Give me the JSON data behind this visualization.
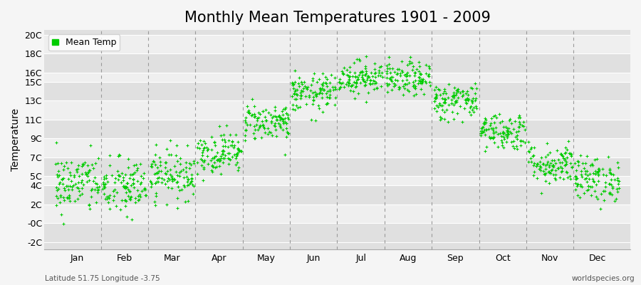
{
  "title": "Monthly Mean Temperatures 1901 - 2009",
  "ylabel": "Temperature",
  "xlabel_labels": [
    "Jan",
    "Feb",
    "Mar",
    "Apr",
    "May",
    "Jun",
    "Jul",
    "Aug",
    "Sep",
    "Oct",
    "Nov",
    "Dec"
  ],
  "ytick_labels": [
    "-2C",
    "-0C",
    "2C",
    "4C",
    "5C",
    "7C",
    "9C",
    "11C",
    "13C",
    "15C",
    "16C",
    "18C",
    "20C"
  ],
  "ytick_values": [
    -2,
    0,
    2,
    4,
    5,
    7,
    9,
    11,
    13,
    15,
    16,
    18,
    20
  ],
  "ylim": [
    -2.8,
    20.5
  ],
  "xlim": [
    0.3,
    12.7
  ],
  "dot_color": "#00cc00",
  "bg_color": "#f5f5f5",
  "band_light": "#efefef",
  "band_dark": "#e0e0e0",
  "dashed_color": "#999999",
  "legend_label": "Mean Temp",
  "bottom_left": "Latitude 51.75 Longitude -3.75",
  "bottom_right": "worldspecies.org",
  "title_fontsize": 15,
  "label_fontsize": 10,
  "tick_fontsize": 9,
  "dot_size": 8,
  "n_years": 109,
  "monthly_means": [
    4.2,
    3.8,
    5.2,
    7.5,
    10.8,
    13.8,
    15.5,
    15.3,
    13.0,
    9.8,
    6.3,
    4.7
  ],
  "monthly_stds": [
    1.6,
    1.6,
    1.3,
    1.1,
    1.0,
    1.0,
    0.9,
    0.9,
    1.0,
    1.0,
    1.1,
    1.2
  ],
  "seed": 42
}
